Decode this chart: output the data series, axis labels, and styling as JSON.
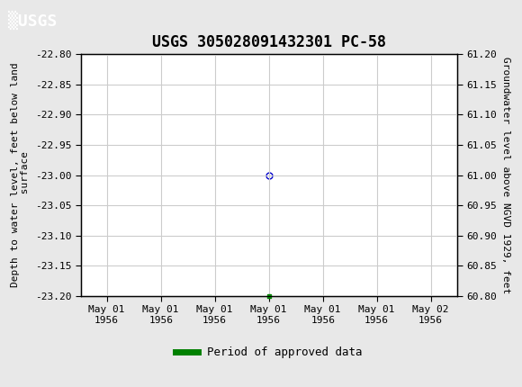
{
  "title": "USGS 305028091432301 PC-58",
  "header_color": "#1a6e35",
  "ylabel_left": "Depth to water level, feet below land\n surface",
  "ylabel_right": "Groundwater level above NGVD 1929, feet",
  "ylim_left": [
    -23.2,
    -22.8
  ],
  "ylim_right": [
    60.8,
    61.2
  ],
  "yticks_left": [
    -23.2,
    -23.15,
    -23.1,
    -23.05,
    -23.0,
    -22.95,
    -22.9,
    -22.85,
    -22.8
  ],
  "yticks_right": [
    60.8,
    60.85,
    60.9,
    60.95,
    61.0,
    61.05,
    61.1,
    61.15,
    61.2
  ],
  "data_x": [
    0.5
  ],
  "data_y": [
    -23.0
  ],
  "marker_color": "#0000cc",
  "marker_style": "o",
  "marker_size": 5,
  "marker_fillstyle": "none",
  "line_color": "#008000",
  "background_color": "#ffffff",
  "fig_background": "#e8e8e8",
  "grid_color": "#cccccc",
  "x_tick_labels": [
    "May 01\n1956",
    "May 01\n1956",
    "May 01\n1956",
    "May 01\n1956",
    "May 01\n1956",
    "May 01\n1956",
    "May 02\n1956"
  ],
  "x_tick_positions": [
    0.0,
    0.1667,
    0.3333,
    0.5,
    0.6667,
    0.8333,
    1.0
  ],
  "legend_label": "Period of approved data",
  "legend_line_color": "#008000"
}
